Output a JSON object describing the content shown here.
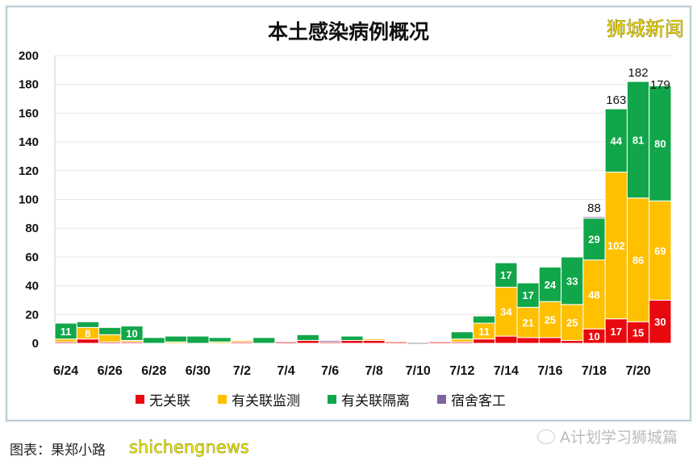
{
  "watermark_top": "狮城新闻",
  "watermark_bottom": "shichengnews",
  "caption": "图表：果郑小路",
  "wechat_account": "A计划学习狮城篇",
  "chart_data": {
    "type": "bar",
    "stacked": true,
    "title": "本土感染病例概况",
    "ylim": [
      0,
      200
    ],
    "yticks": [
      0,
      20,
      40,
      60,
      80,
      100,
      120,
      140,
      160,
      180,
      200
    ],
    "grid": true,
    "legend_position": "bottom",
    "categories": [
      "6/24",
      "6/25",
      "6/26",
      "6/27",
      "6/28",
      "6/29",
      "6/30",
      "7/1",
      "7/2",
      "7/3",
      "7/4",
      "7/5",
      "7/6",
      "7/7",
      "7/8",
      "7/9",
      "7/10",
      "7/11",
      "7/12",
      "7/13",
      "7/14",
      "7/15",
      "7/16",
      "7/17",
      "7/18",
      "7/19",
      "7/20",
      "7/21"
    ],
    "xtick_labels": [
      "6/24",
      "6/26",
      "6/28",
      "6/30",
      "7/2",
      "7/4",
      "7/6",
      "7/8",
      "7/10",
      "7/12",
      "7/14",
      "7/16",
      "7/18",
      "7/20"
    ],
    "series": [
      {
        "name": "无关联",
        "color": "#e8090f",
        "values": [
          1,
          3,
          1,
          1,
          0,
          0,
          0,
          0,
          1,
          0,
          1,
          2,
          1,
          2,
          2,
          1,
          0,
          1,
          1,
          3,
          5,
          4,
          4,
          2,
          10,
          17,
          15,
          30
        ]
      },
      {
        "name": "有关联监测",
        "color": "#ffc000",
        "values": [
          2,
          8,
          5,
          1,
          0,
          1,
          0,
          1,
          1,
          0,
          0,
          0,
          0,
          0,
          1,
          0,
          0,
          0,
          2,
          11,
          34,
          21,
          25,
          25,
          48,
          102,
          86,
          69
        ]
      },
      {
        "name": "有关联隔离",
        "color": "#12a64a",
        "values": [
          11,
          4,
          5,
          10,
          4,
          4,
          5,
          3,
          0,
          4,
          0,
          4,
          0,
          3,
          0,
          0,
          0,
          0,
          5,
          5,
          17,
          17,
          24,
          33,
          29,
          44,
          81,
          80
        ]
      },
      {
        "name": "宿舍客工",
        "color": "#8064a2",
        "values": [
          0,
          0,
          0,
          0,
          0,
          0,
          0,
          0,
          0,
          0,
          0,
          0,
          1,
          0,
          0,
          0,
          0,
          0,
          0,
          0,
          0,
          0,
          0,
          0,
          1,
          0,
          0,
          0
        ]
      }
    ],
    "total_labels": {
      "7/18": 88,
      "7/19": 163,
      "7/20": 182,
      "7/21": 179
    }
  }
}
